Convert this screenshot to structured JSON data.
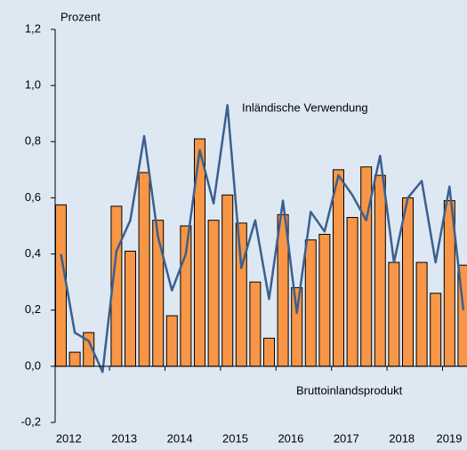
{
  "chart_data": {
    "type": "bar_line",
    "y_axis_label": "Prozent",
    "categories": [
      "2012",
      null,
      null,
      null,
      "2013",
      null,
      null,
      null,
      "2014",
      null,
      null,
      null,
      "2015",
      null,
      null,
      null,
      "2016",
      null,
      null,
      null,
      "2017",
      null,
      null,
      null,
      "2018",
      null,
      null,
      null,
      "2019",
      null
    ],
    "series": [
      {
        "name": "Bruttoinlandsprodukt",
        "type": "bar",
        "color": "#f79646",
        "values": [
          0.575,
          0.05,
          0.12,
          0.0,
          0.57,
          0.41,
          0.69,
          0.52,
          0.18,
          0.5,
          0.81,
          0.52,
          0.61,
          0.51,
          0.3,
          0.1,
          0.54,
          0.28,
          0.45,
          0.47,
          0.7,
          0.53,
          0.71,
          0.68,
          0.37,
          0.6,
          0.37,
          0.26,
          0.59,
          0.36
        ]
      },
      {
        "name": "Inländische Verwendung",
        "type": "line",
        "color": "#3c5f8f",
        "values": [
          0.4,
          0.12,
          0.09,
          -0.02,
          0.41,
          0.52,
          0.82,
          0.46,
          0.27,
          0.4,
          0.77,
          0.58,
          0.93,
          0.35,
          0.52,
          0.24,
          0.59,
          0.19,
          0.55,
          0.48,
          0.68,
          0.61,
          0.52,
          0.75,
          0.37,
          0.6,
          0.66,
          0.37,
          0.64,
          0.2
        ]
      }
    ],
    "ylim": [
      -0.2,
      1.2
    ],
    "yticks": [
      {
        "value": -0.2,
        "label": "-0,2"
      },
      {
        "value": 0,
        "label": "0,0"
      },
      {
        "value": 0.2,
        "label": "0,2"
      },
      {
        "value": 0.4,
        "label": "0,4"
      },
      {
        "value": 0.6,
        "label": "0,6"
      },
      {
        "value": 0.8,
        "label": "0,8"
      },
      {
        "value": 1.0,
        "label": "1,0"
      },
      {
        "value": 1.2,
        "label": "1,2"
      }
    ]
  }
}
